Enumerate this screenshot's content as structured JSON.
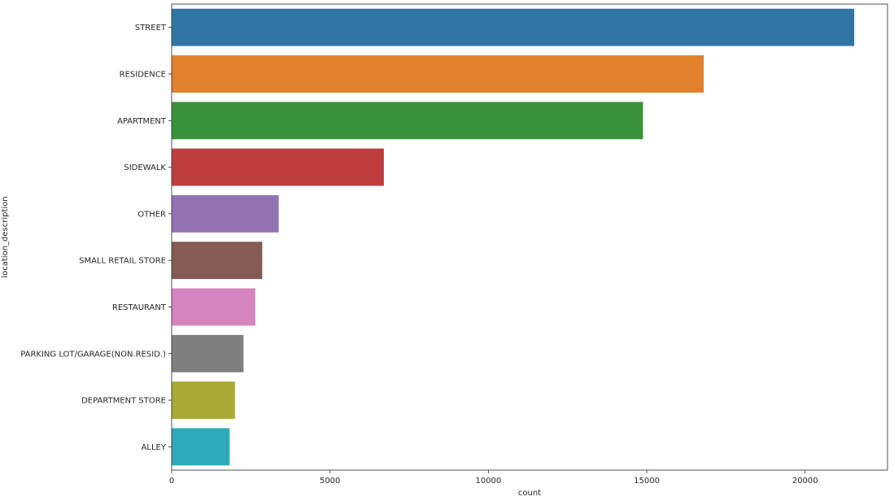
{
  "chart_data": {
    "type": "bar",
    "orientation": "horizontal",
    "title": "",
    "xlabel": "count",
    "ylabel": "location_description",
    "xlim": [
      0,
      22600
    ],
    "xticks": [
      0,
      5000,
      10000,
      15000,
      20000
    ],
    "xtick_labels": [
      "0",
      "5000",
      "10000",
      "15000",
      "20000"
    ],
    "grid": false,
    "legend": "none",
    "categories": [
      "STREET",
      "RESIDENCE",
      "APARTMENT",
      "SIDEWALK",
      "OTHER",
      "SMALL RETAIL STORE",
      "RESTAURANT",
      "PARKING LOT/GARAGE(NON.RESID.)",
      "DEPARTMENT STORE",
      "ALLEY"
    ],
    "values": [
      21550,
      16800,
      14880,
      6700,
      3380,
      2860,
      2640,
      2270,
      2000,
      1830
    ],
    "colors": [
      "#3274a1",
      "#e1812c",
      "#3a923a",
      "#c03d3e",
      "#9372b2",
      "#845b53",
      "#d684bd",
      "#7f7f7f",
      "#a9aa35",
      "#2eaab8"
    ]
  }
}
